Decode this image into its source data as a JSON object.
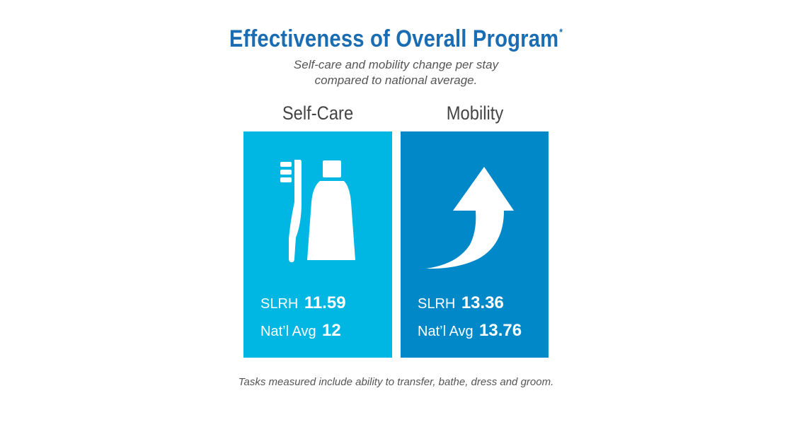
{
  "header": {
    "title": "Effectiveness of Overall Program",
    "title_mark": "*",
    "subtitle_line1": "Self-care and mobility change per stay",
    "subtitle_line2": "compared to national average."
  },
  "panels": [
    {
      "heading": "Self-Care",
      "icon": "toothbrush-toothpaste-icon",
      "color": "#00b6e3",
      "stats": [
        {
          "label": "SLRH",
          "value": "11.59"
        },
        {
          "label": "Nat’l Avg",
          "value": "12"
        }
      ]
    },
    {
      "heading": "Mobility",
      "icon": "curved-up-arrow-icon",
      "color": "#0088c9",
      "stats": [
        {
          "label": "SLRH",
          "value": "13.36"
        },
        {
          "label": "Nat’l Avg",
          "value": "13.76"
        }
      ]
    }
  ],
  "footnote": "Tasks measured include ability to transfer, bathe, dress and groom.",
  "colors": {
    "title": "#1b6db3",
    "text": "#555555"
  }
}
